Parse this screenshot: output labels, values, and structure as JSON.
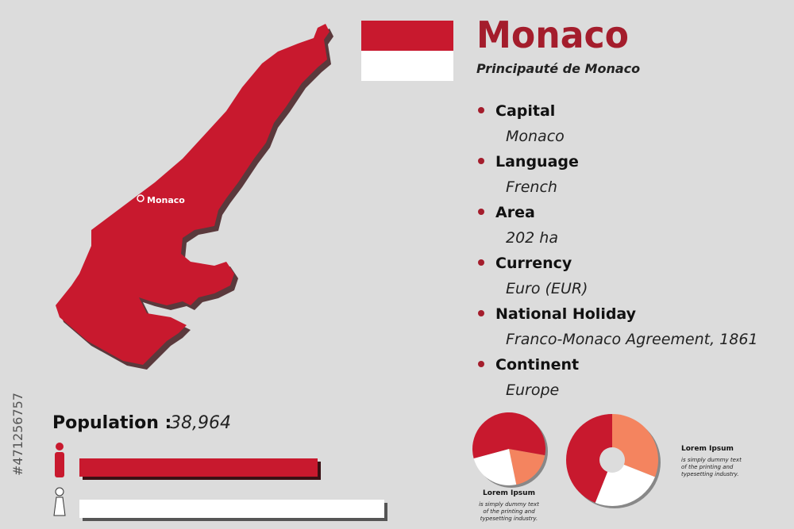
{
  "header": {
    "title": "Monaco",
    "subtitle": "Principauté de Monaco"
  },
  "map": {
    "city_label": "Monaco"
  },
  "facts": [
    {
      "label": "Capital",
      "value": "Monaco"
    },
    {
      "label": "Language",
      "value": "French"
    },
    {
      "label": "Area",
      "value": "202 ha"
    },
    {
      "label": "Currency",
      "value": "Euro (EUR)"
    },
    {
      "label": "National Holiday",
      "value": "Franco-Monaco Agreement, 1861"
    },
    {
      "label": "Continent",
      "value": "Europe"
    }
  ],
  "population": {
    "label": "Population :",
    "value": "38,964"
  },
  "pies": [
    {
      "values": [
        19,
        24,
        57
      ],
      "colors": [
        "#f4845f",
        "#ffffff",
        "#c8192e"
      ],
      "caption_title": "Lorem Ipsum",
      "caption_lines": [
        "is simply dummy text",
        "of the printing and",
        "typesetting industry."
      ]
    },
    {
      "values": [
        31,
        25,
        44
      ],
      "colors": [
        "#f4845f",
        "#ffffff",
        "#c8192e"
      ],
      "caption_title": "Lorem Ipsum",
      "caption_lines": [
        "is simply dummy text",
        "of the printing and",
        "typesetting industry."
      ]
    }
  ],
  "stock_id": "#471256757"
}
